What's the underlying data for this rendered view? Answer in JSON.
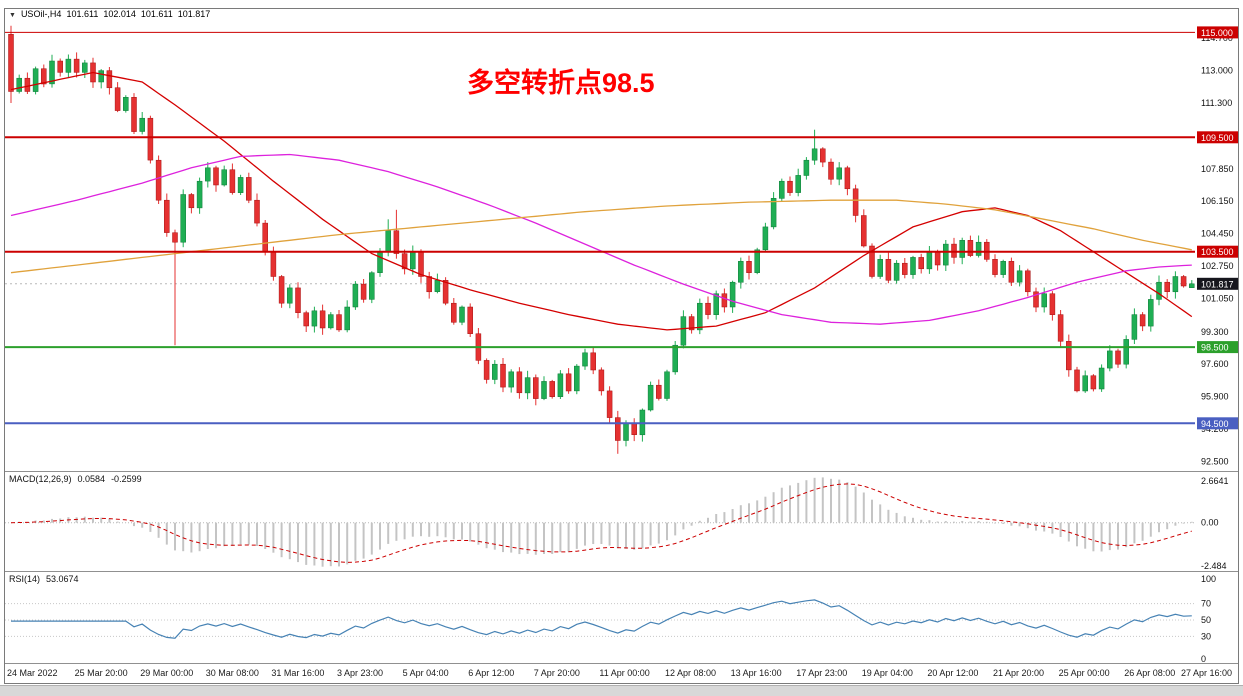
{
  "titlebar": {
    "symbol_period": "USOil-,H4",
    "open": "101.611",
    "high": "102.014",
    "low": "101.611",
    "close": "101.817"
  },
  "annotation": {
    "text": "多空转折点98.5",
    "color": "#ff0000"
  },
  "indicators": {
    "macd": {
      "name": "MACD(12,26,9)",
      "value": "0.0584",
      "signal_value": "-0.2599"
    },
    "rsi": {
      "name": "RSI(14)",
      "value": "53.0674"
    }
  },
  "chart_data": {
    "type": "candlestick",
    "symbol": "USOil-",
    "timeframe": "H4",
    "ylim": [
      92.0,
      115.6
    ],
    "up_color": "#1fae54",
    "up_stroke": "#0c7a36",
    "down_color": "#e53131",
    "down_stroke": "#a51111",
    "x_labels": [
      "24 Mar 2022",
      "25 Mar 20:00",
      "29 Mar 00:00",
      "30 Mar 08:00",
      "31 Mar 16:00",
      "3 Apr 23:00",
      "5 Apr 04:00",
      "6 Apr 12:00",
      "7 Apr 20:00",
      "11 Apr 00:00",
      "12 Apr 08:00",
      "13 Apr 16:00",
      "17 Apr 23:00",
      "19 Apr 04:00",
      "20 Apr 12:00",
      "21 Apr 20:00",
      "25 Apr 00:00",
      "26 Apr 08:00",
      "27 Apr 16:00"
    ],
    "candles_per_label": 8,
    "price": {
      "first_open": 114.9,
      "closes": [
        111.9,
        112.6,
        111.9,
        113.1,
        112.3,
        113.5,
        112.9,
        113.6,
        112.9,
        113.4,
        112.4,
        113.0,
        112.1,
        110.9,
        111.6,
        109.8,
        110.5,
        108.3,
        106.2,
        104.5,
        104.0,
        106.5,
        105.8,
        107.2,
        107.9,
        107.0,
        107.8,
        106.6,
        107.4,
        106.2,
        105.0,
        103.5,
        102.2,
        100.8,
        101.6,
        100.3,
        99.6,
        100.4,
        99.5,
        100.2,
        99.4,
        100.6,
        101.8,
        101.0,
        102.4,
        103.5,
        104.6,
        103.4,
        102.6,
        103.5,
        102.2,
        101.4,
        102.0,
        100.8,
        99.8,
        100.6,
        99.2,
        97.8,
        96.8,
        97.6,
        96.4,
        97.2,
        96.1,
        96.9,
        95.8,
        96.7,
        95.9,
        97.1,
        96.2,
        97.5,
        98.2,
        97.3,
        96.2,
        94.8,
        93.6,
        94.5,
        93.9,
        95.2,
        96.5,
        95.8,
        97.2,
        98.6,
        100.1,
        99.4,
        100.8,
        100.2,
        101.3,
        100.6,
        101.9,
        103.0,
        102.4,
        103.6,
        104.8,
        106.3,
        107.2,
        106.6,
        107.5,
        108.3,
        108.9,
        108.2,
        107.3,
        107.9,
        106.8,
        105.4,
        103.8,
        102.2,
        103.1,
        102.0,
        102.9,
        102.3,
        103.2,
        102.6,
        103.5,
        102.8,
        103.9,
        103.2,
        104.1,
        103.3,
        104.0,
        103.1,
        102.3,
        103.0,
        101.9,
        102.5,
        101.4,
        100.6,
        101.3,
        100.2,
        98.8,
        97.3,
        96.2,
        97.0,
        96.3,
        97.4,
        98.3,
        97.6,
        98.9,
        100.2,
        99.6,
        101.0,
        101.9,
        101.4,
        102.2,
        101.7,
        101.817
      ],
      "overrides": {
        "0": {
          "h": 115.35,
          "l": 111.3
        },
        "20": {
          "l": 98.6
        },
        "46": {
          "h": 105.2
        },
        "47": {
          "h": 105.7
        },
        "74": {
          "l": 92.9
        },
        "98": {
          "h": 109.9
        },
        "144": {
          "o": 101.611,
          "h": 102.014,
          "l": 101.611
        }
      }
    },
    "moving_averages": [
      {
        "name": "ma-fast-red",
        "color": "#d40000",
        "points": [
          [
            0,
            112.0
          ],
          [
            10,
            112.9
          ],
          [
            16,
            112.4
          ],
          [
            20,
            111.2
          ],
          [
            26,
            109.3
          ],
          [
            32,
            107.2
          ],
          [
            38,
            105.2
          ],
          [
            44,
            103.4
          ],
          [
            50,
            102.3
          ],
          [
            56,
            101.5
          ],
          [
            62,
            100.8
          ],
          [
            68,
            100.2
          ],
          [
            74,
            99.7
          ],
          [
            80,
            99.4
          ],
          [
            86,
            99.6
          ],
          [
            92,
            100.3
          ],
          [
            98,
            101.6
          ],
          [
            104,
            103.3
          ],
          [
            110,
            104.8
          ],
          [
            116,
            105.6
          ],
          [
            120,
            105.8
          ],
          [
            124,
            105.4
          ],
          [
            128,
            104.6
          ],
          [
            132,
            103.5
          ],
          [
            136,
            102.4
          ],
          [
            140,
            101.3
          ],
          [
            144,
            100.1
          ]
        ]
      },
      {
        "name": "ma-mid-magenta",
        "color": "#dd22dd",
        "points": [
          [
            0,
            105.4
          ],
          [
            8,
            106.2
          ],
          [
            16,
            107.1
          ],
          [
            22,
            107.9
          ],
          [
            28,
            108.5
          ],
          [
            34,
            108.6
          ],
          [
            40,
            108.3
          ],
          [
            46,
            107.7
          ],
          [
            52,
            106.9
          ],
          [
            58,
            106.0
          ],
          [
            64,
            105.0
          ],
          [
            70,
            103.9
          ],
          [
            76,
            102.8
          ],
          [
            82,
            101.8
          ],
          [
            88,
            100.9
          ],
          [
            94,
            100.2
          ],
          [
            100,
            99.8
          ],
          [
            106,
            99.7
          ],
          [
            112,
            99.9
          ],
          [
            118,
            100.4
          ],
          [
            124,
            101.1
          ],
          [
            130,
            101.9
          ],
          [
            136,
            102.5
          ],
          [
            140,
            102.7
          ],
          [
            144,
            102.8
          ]
        ]
      },
      {
        "name": "ma-slow-orange",
        "color": "#e0a23c",
        "points": [
          [
            0,
            102.4
          ],
          [
            10,
            102.9
          ],
          [
            20,
            103.4
          ],
          [
            30,
            103.9
          ],
          [
            40,
            104.4
          ],
          [
            50,
            104.8
          ],
          [
            60,
            105.2
          ],
          [
            70,
            105.6
          ],
          [
            80,
            105.9
          ],
          [
            90,
            106.1
          ],
          [
            100,
            106.2
          ],
          [
            108,
            106.2
          ],
          [
            114,
            106.0
          ],
          [
            120,
            105.7
          ],
          [
            126,
            105.2
          ],
          [
            132,
            104.7
          ],
          [
            138,
            104.1
          ],
          [
            144,
            103.6
          ]
        ]
      }
    ],
    "levels": [
      {
        "value": 115.0,
        "label": "115.000",
        "color": "#cc0000",
        "width": 1
      },
      {
        "value": 109.5,
        "label": "109.500",
        "color": "#cc0000",
        "width": 2
      },
      {
        "value": 103.5,
        "label": "103.500",
        "color": "#cc0000",
        "width": 2
      },
      {
        "value": 98.5,
        "label": "98.500",
        "color": "#2ca02c",
        "width": 2
      },
      {
        "value": 94.5,
        "label": "94.500",
        "color": "#4a5fc1",
        "width": 2
      }
    ],
    "current_price": {
      "value": 101.817,
      "label": "101.817",
      "badge_color": "#16161d"
    },
    "y_ticks": [
      114.7,
      113.0,
      111.3,
      107.85,
      106.15,
      104.45,
      102.75,
      101.05,
      99.3,
      97.6,
      95.9,
      94.2,
      92.5
    ],
    "y_tick_labels": [
      "114.700",
      "113.000",
      "111.300",
      "107.850",
      "106.150",
      "104.450",
      "102.750",
      "101.050",
      "99.300",
      "97.600",
      "95.900",
      "94.200",
      "92.500"
    ],
    "macd": {
      "params": [
        12,
        26,
        9
      ],
      "axis_labels": [
        "2.6641",
        "0.00",
        "-2.484"
      ],
      "current": 0.0584,
      "signal_current": -0.2599,
      "histogram_color": "#c4c4c4",
      "signal_color": "#cc0000"
    },
    "rsi": {
      "period": 14,
      "current": 53.0674,
      "levels": [
        100,
        70,
        50,
        30,
        0
      ],
      "color": "#4682b4"
    }
  }
}
